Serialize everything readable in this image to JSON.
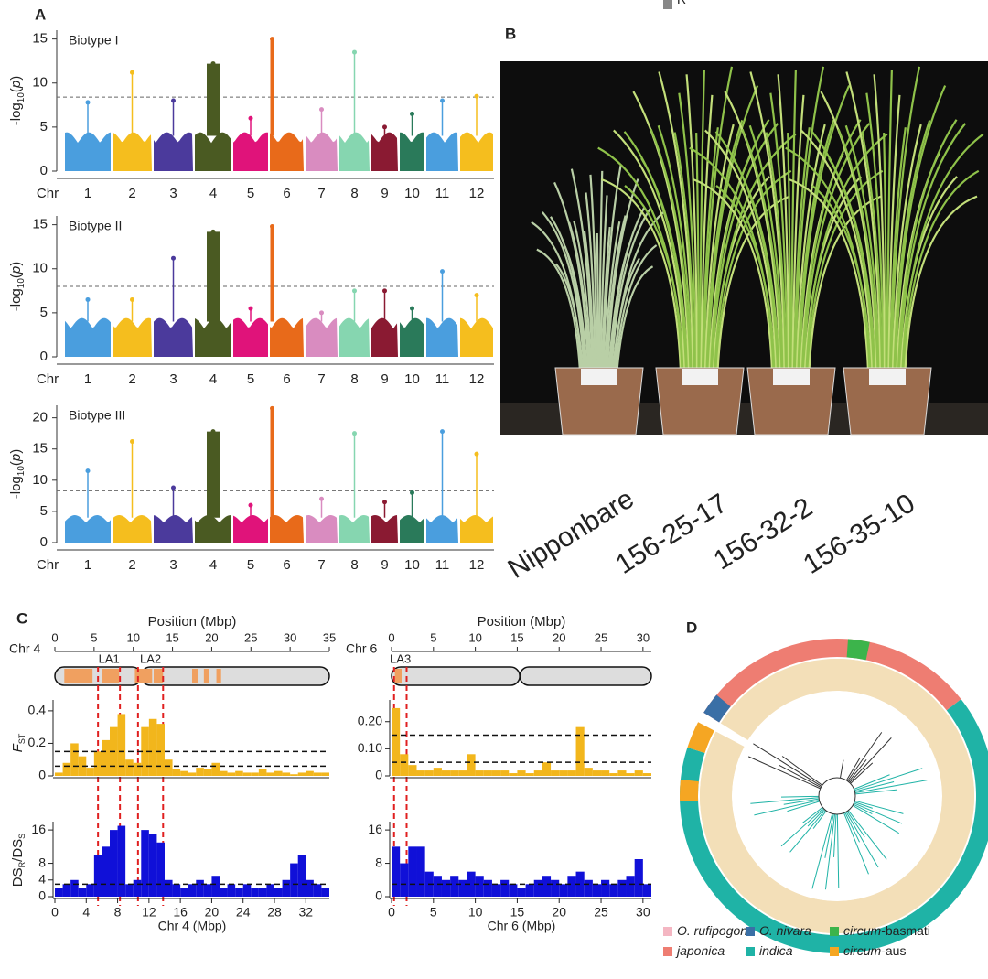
{
  "panels": {
    "A": {
      "label": "A",
      "chr_label": "Chr",
      "chromosomes": [
        "1",
        "2",
        "3",
        "4",
        "5",
        "6",
        "7",
        "8",
        "9",
        "10",
        "11",
        "12"
      ],
      "colors": [
        "#4a9ede",
        "#f5be1e",
        "#4b3a9c",
        "#4a5a22",
        "#e0137a",
        "#e86a1a",
        "#d98cc0",
        "#86d6b0",
        "#8a1a32",
        "#2a7a5a",
        "#4a9ede",
        "#f5be1e"
      ],
      "y_label": [
        "-log",
        "10",
        "(",
        "p",
        ")"
      ],
      "plots": [
        {
          "title": "Biotype I",
          "ylim": [
            0,
            16
          ],
          "yticks": [
            0,
            5,
            10,
            15
          ],
          "threshold": 8.4,
          "peaks": [
            7.8,
            11.2,
            8.0,
            12.2,
            6.0,
            15.0,
            7.0,
            13.5,
            5.0,
            6.5,
            8.0,
            8.5
          ]
        },
        {
          "title": "Biotype II",
          "ylim": [
            0,
            16
          ],
          "yticks": [
            0,
            5,
            10,
            15
          ],
          "threshold": 8.0,
          "peaks": [
            6.5,
            6.5,
            11.2,
            14.2,
            5.5,
            14.8,
            5.0,
            7.5,
            7.5,
            5.5,
            9.7,
            7.0
          ]
        },
        {
          "title": "Biotype III",
          "ylim": [
            0,
            22
          ],
          "yticks": [
            0,
            5,
            10,
            15,
            20
          ],
          "threshold": 8.3,
          "peaks": [
            11.5,
            16.2,
            8.8,
            17.8,
            6.0,
            21.5,
            7.0,
            17.5,
            6.5,
            8.0,
            17.8,
            14.2
          ]
        }
      ]
    },
    "B": {
      "label": "B",
      "lines": [
        "Nipponbare",
        "156-25-17",
        "156-32-2",
        "156-35-10"
      ]
    },
    "C": {
      "label": "C",
      "fst_label": [
        "F",
        "ST"
      ],
      "ds_label": [
        "DS",
        "R",
        "/DS",
        "S"
      ],
      "plots": [
        {
          "chr": "Chr 4",
          "title": "Position (Mbp)",
          "xlabel": "Chr 4 (Mbp)",
          "xlim": [
            0,
            35
          ],
          "top_ticks": [
            0,
            5,
            10,
            15,
            20,
            25,
            30,
            35
          ],
          "bottom_ticks": [
            0,
            4,
            8,
            12,
            16,
            20,
            24,
            28,
            32
          ],
          "loci": [
            {
              "label": "LA1",
              "range": [
                5.5,
                8.3
              ]
            },
            {
              "label": "LA2",
              "range": [
                10.6,
                13.8
              ]
            }
          ],
          "fst_ylim": [
            0,
            0.45
          ],
          "fst_ticks": [
            0,
            0.2,
            0.4
          ],
          "fst_thresholds": [
            0.15,
            0.06
          ],
          "ds_ylim": [
            0,
            18
          ],
          "ds_ticks": [
            0,
            4,
            8,
            16
          ],
          "ds_threshold": 3,
          "x": [
            0,
            1,
            2,
            3,
            4,
            5,
            6,
            7,
            8,
            9,
            10,
            11,
            12,
            13,
            14,
            15,
            16,
            17,
            18,
            19,
            20,
            21,
            22,
            23,
            24,
            25,
            26,
            27,
            28,
            29,
            30,
            31,
            32,
            33,
            34
          ],
          "fst": [
            0.02,
            0.08,
            0.2,
            0.12,
            0.05,
            0.15,
            0.22,
            0.3,
            0.38,
            0.1,
            0.08,
            0.3,
            0.35,
            0.32,
            0.1,
            0.04,
            0.03,
            0.02,
            0.05,
            0.04,
            0.08,
            0.03,
            0.02,
            0.03,
            0.02,
            0.02,
            0.04,
            0.02,
            0.03,
            0.02,
            0.01,
            0.02,
            0.03,
            0.02,
            0.02
          ],
          "ds": [
            2,
            3,
            4,
            2,
            3,
            10,
            12,
            16,
            17,
            3,
            4,
            16,
            15,
            13,
            4,
            3,
            2,
            3,
            4,
            3,
            5,
            2,
            3,
            2,
            3,
            2,
            2,
            3,
            2,
            4,
            8,
            10,
            4,
            3,
            2
          ]
        },
        {
          "chr": "Chr 6",
          "title": "Position (Mbp)",
          "xlabel": "Chr 6 (Mbp)",
          "xlim": [
            0,
            31
          ],
          "top_ticks": [
            0,
            5,
            10,
            15,
            20,
            25,
            30
          ],
          "bottom_ticks": [
            0,
            5,
            10,
            15,
            20,
            25,
            30
          ],
          "loci": [
            {
              "label": "LA3",
              "range": [
                0.3,
                1.8
              ]
            }
          ],
          "fst_ylim": [
            0,
            0.27
          ],
          "fst_ticks": [
            0,
            {
              "value": 0.1,
              "label": "0.10"
            },
            {
              "value": 0.2,
              "label": "0.20"
            }
          ],
          "fst_thresholds": [
            0.15,
            0.05
          ],
          "ds_ylim": [
            0,
            18
          ],
          "ds_ticks": [
            0,
            8,
            16
          ],
          "ds_threshold": 3,
          "x": [
            0,
            1,
            2,
            3,
            4,
            5,
            6,
            7,
            8,
            9,
            10,
            11,
            12,
            13,
            14,
            15,
            16,
            17,
            18,
            19,
            20,
            21,
            22,
            23,
            24,
            25,
            26,
            27,
            28,
            29,
            30
          ],
          "fst": [
            0.25,
            0.08,
            0.04,
            0.02,
            0.02,
            0.03,
            0.02,
            0.02,
            0.02,
            0.08,
            0.02,
            0.02,
            0.02,
            0.02,
            0.01,
            0.02,
            0.01,
            0.02,
            0.05,
            0.02,
            0.02,
            0.02,
            0.18,
            0.03,
            0.02,
            0.02,
            0.01,
            0.02,
            0.01,
            0.02,
            0.01
          ],
          "ds": [
            12,
            8,
            12,
            12,
            6,
            5,
            4,
            5,
            4,
            6,
            5,
            4,
            3,
            4,
            3,
            2,
            3,
            4,
            5,
            4,
            3,
            5,
            6,
            4,
            3,
            4,
            3,
            4,
            5,
            9,
            3
          ]
        }
      ]
    },
    "D": {
      "label": "D",
      "legend": [
        {
          "parts": [
            {
              "text": "O. rufipogon",
              "italic": true
            }
          ],
          "color": "#f4b6c2"
        },
        {
          "parts": [
            {
              "text": "O. nivara",
              "italic": true
            }
          ],
          "color": "#3a6fa6"
        },
        {
          "parts": [
            {
              "text": "circum",
              "italic": true
            },
            {
              "text": "-basmati"
            }
          ],
          "color": "#3cb44b"
        },
        {
          "parts": [
            {
              "text": "japonica",
              "italic": true
            }
          ],
          "color": "#ee7d72"
        },
        {
          "parts": [
            {
              "text": "indica",
              "italic": true
            }
          ],
          "color": "#1fb3a6"
        },
        {
          "parts": [
            {
              "text": "circum",
              "italic": true
            },
            {
              "text": "-aus"
            }
          ],
          "color": "#f5a623"
        },
        {
          "parts": [
            {
              "text": "R"
            }
          ],
          "color": "#888888"
        }
      ]
    }
  }
}
